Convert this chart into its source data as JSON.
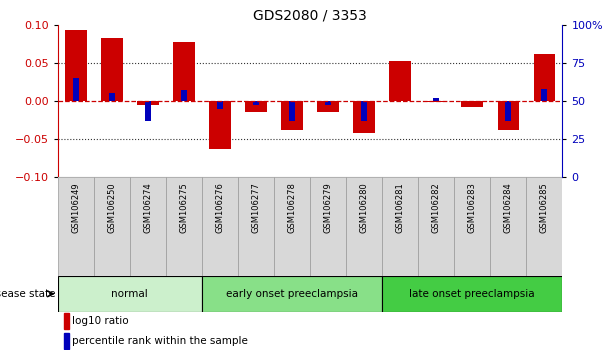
{
  "title": "GDS2080 / 3353",
  "samples": [
    "GSM106249",
    "GSM106250",
    "GSM106274",
    "GSM106275",
    "GSM106276",
    "GSM106277",
    "GSM106278",
    "GSM106279",
    "GSM106280",
    "GSM106281",
    "GSM106282",
    "GSM106283",
    "GSM106284",
    "GSM106285"
  ],
  "log10_ratio": [
    0.093,
    0.083,
    -0.005,
    0.078,
    -0.063,
    -0.015,
    -0.038,
    -0.015,
    -0.042,
    0.052,
    -0.002,
    -0.008,
    -0.038,
    0.062
  ],
  "percentile_rank_pct": [
    65,
    55,
    37,
    57,
    45,
    47,
    37,
    47,
    37,
    50,
    52,
    50,
    37,
    58
  ],
  "disease_groups": [
    {
      "label": "normal",
      "start": 0,
      "end": 4,
      "color": "#ccf0cc"
    },
    {
      "label": "early onset preeclampsia",
      "start": 4,
      "end": 9,
      "color": "#88e088"
    },
    {
      "label": "late onset preeclampsia",
      "start": 9,
      "end": 14,
      "color": "#44cc44"
    }
  ],
  "bar_color_red": "#cc0000",
  "bar_color_blue": "#0000bb",
  "ylim_left": [
    -0.1,
    0.1
  ],
  "ylim_right": [
    0,
    100
  ],
  "yticks_left": [
    -0.1,
    -0.05,
    0,
    0.05,
    0.1
  ],
  "yticks_right": [
    0,
    25,
    50,
    75,
    100
  ],
  "ytick_labels_right": [
    "0",
    "25",
    "50",
    "75",
    "100%"
  ],
  "zero_line_color": "#cc0000",
  "dot_line_color": "#333333"
}
